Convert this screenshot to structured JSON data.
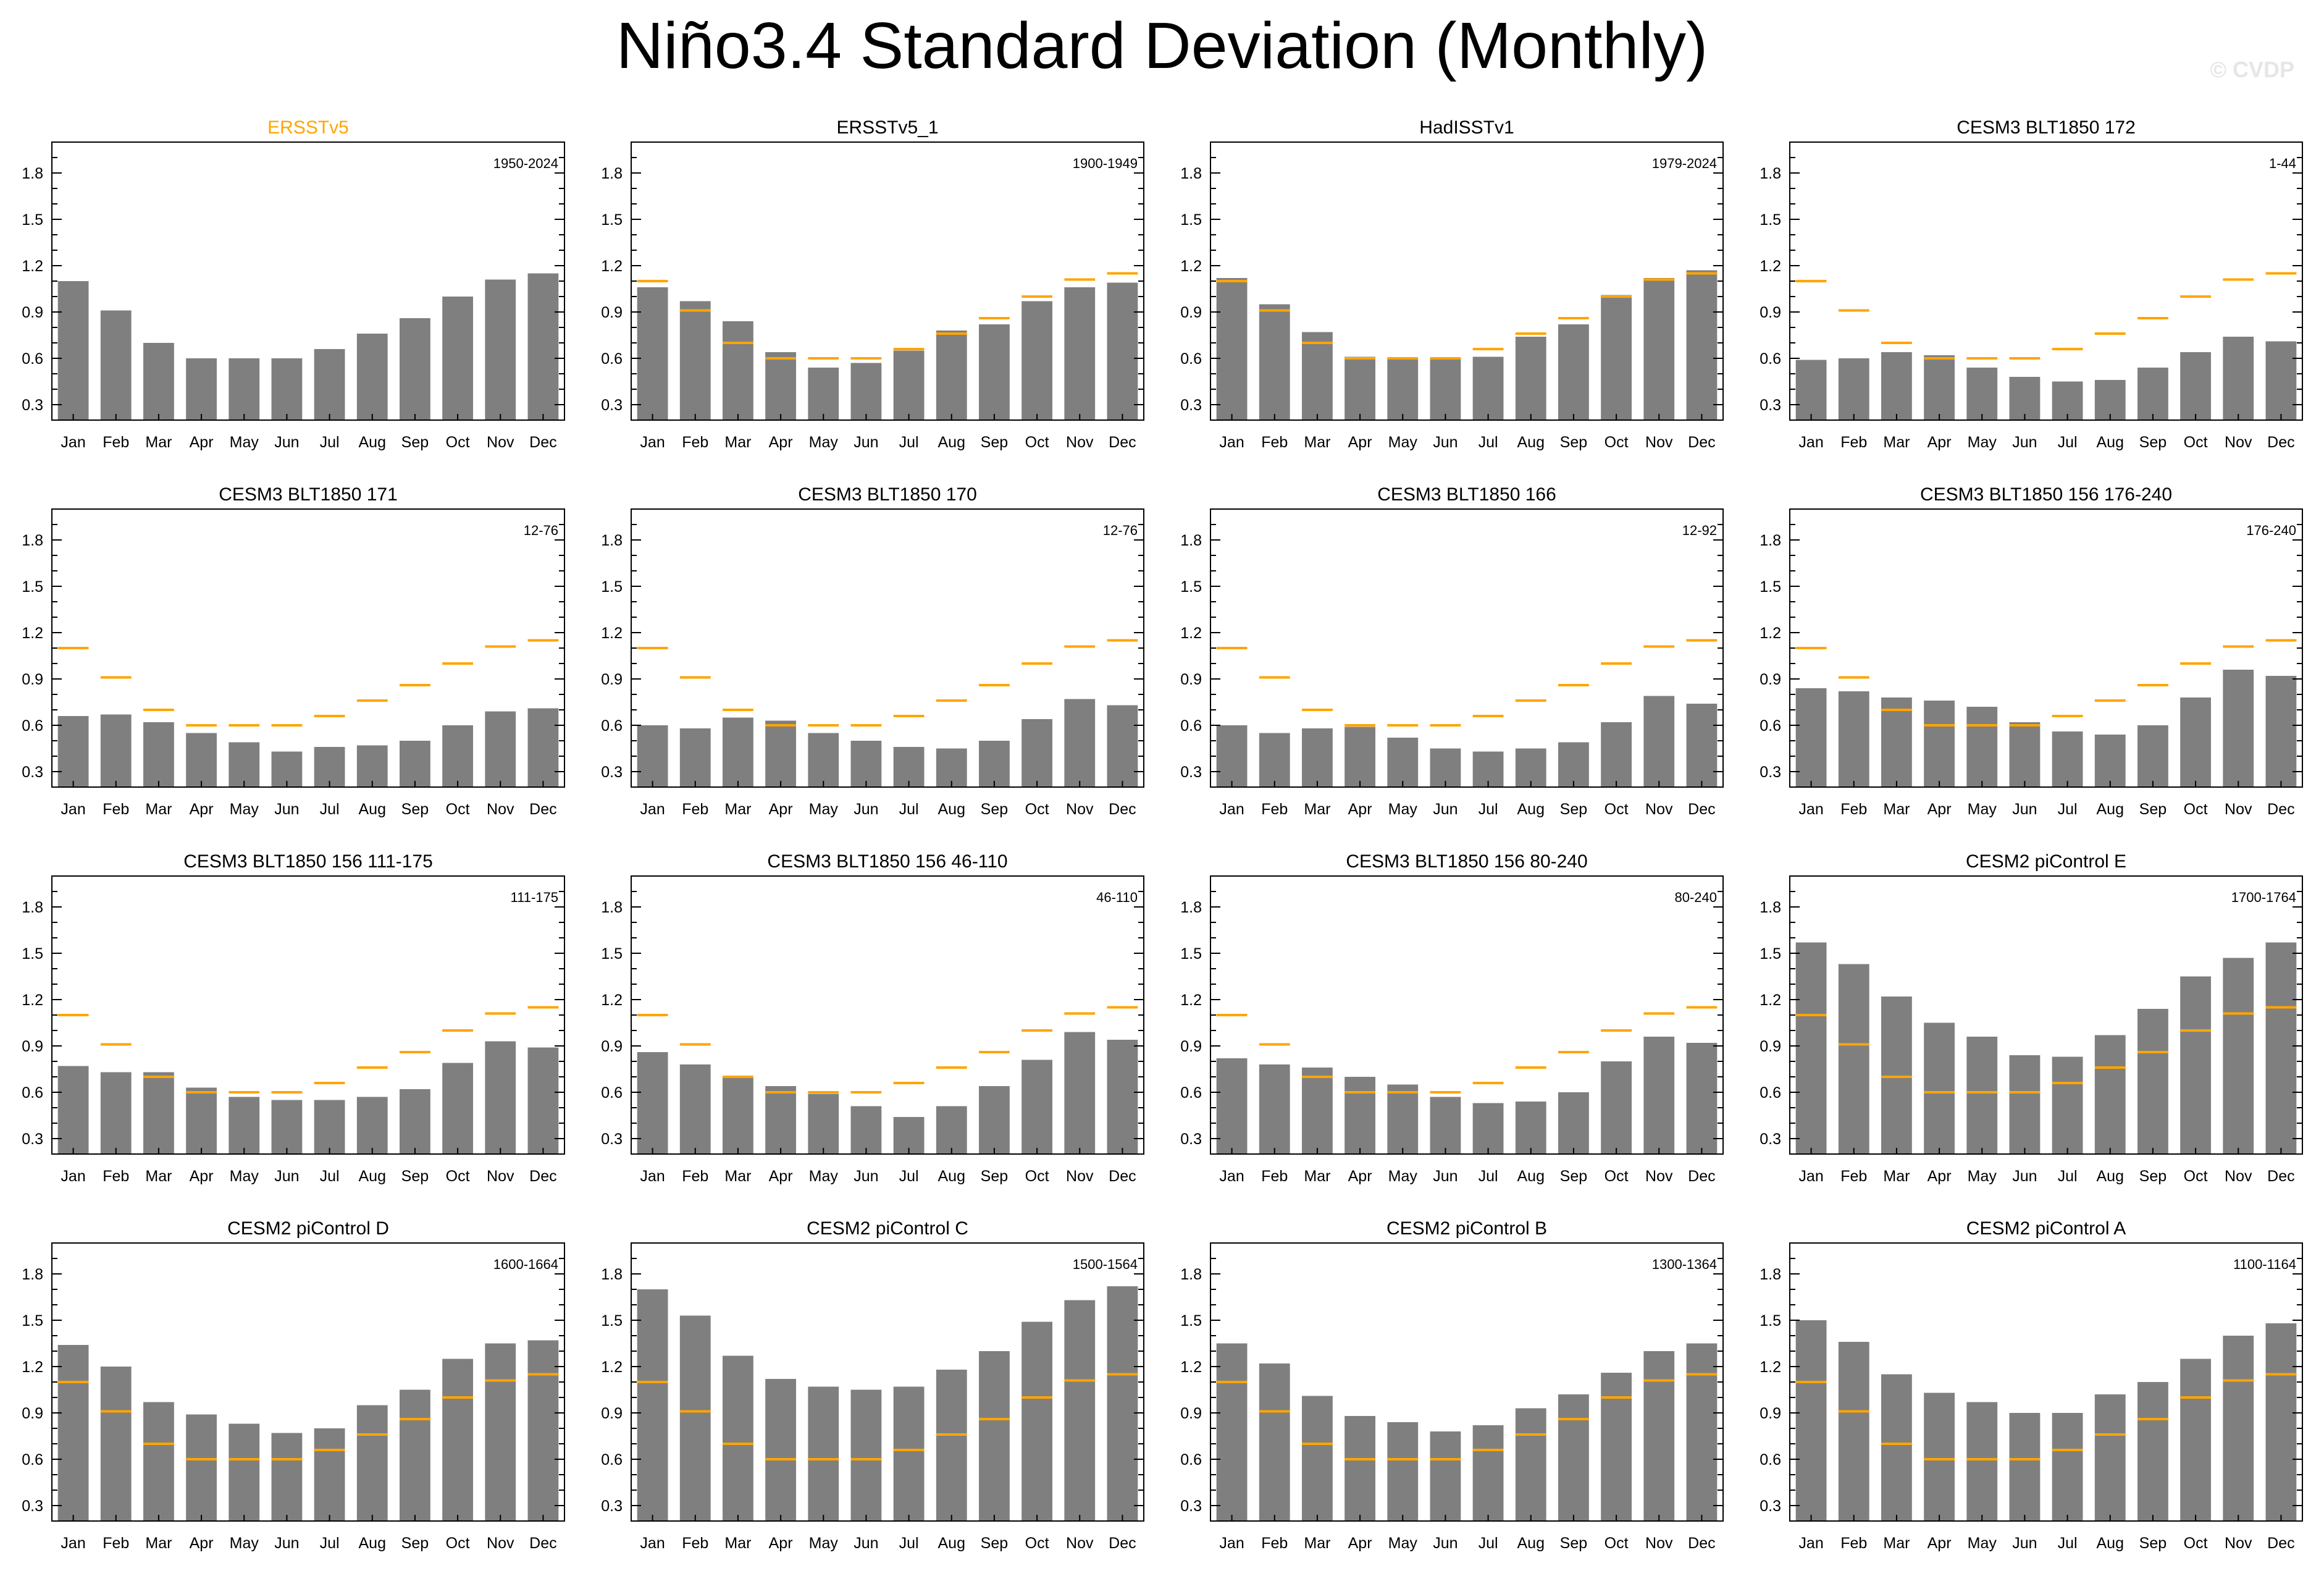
{
  "title": "Niño3.4 Standard Deviation (Monthly)",
  "watermark": "© CVDP",
  "colors": {
    "bar": "#7f7f7f",
    "obs_line": "#ffa500",
    "title_obs": "#ffa500",
    "axis": "#000000"
  },
  "chart_data": {
    "type": "bar",
    "categories": [
      "Jan",
      "Feb",
      "Mar",
      "Apr",
      "May",
      "Jun",
      "Jul",
      "Aug",
      "Sep",
      "Oct",
      "Nov",
      "Dec"
    ],
    "ylim": [
      0.2,
      2.0
    ],
    "yticks": [
      0.3,
      0.6,
      0.9,
      1.2,
      1.5,
      1.8
    ],
    "ytick_labels": [
      "0.3",
      "0.6",
      "0.9",
      "1.2",
      "1.5",
      "1.8"
    ],
    "reference_name": "ERSSTv5",
    "reference_values": [
      1.1,
      0.91,
      0.7,
      0.6,
      0.6,
      0.6,
      0.66,
      0.76,
      0.86,
      1.0,
      1.11,
      1.15
    ],
    "panels": [
      {
        "title": "ERSSTv5",
        "period": "1950-2024",
        "is_reference": true,
        "values": [
          1.1,
          0.91,
          0.7,
          0.6,
          0.6,
          0.6,
          0.66,
          0.76,
          0.86,
          1.0,
          1.11,
          1.15
        ]
      },
      {
        "title": "ERSSTv5_1",
        "period": "1900-1949",
        "is_reference": false,
        "values": [
          1.06,
          0.97,
          0.84,
          0.64,
          0.54,
          0.57,
          0.65,
          0.78,
          0.82,
          0.97,
          1.06,
          1.09
        ]
      },
      {
        "title": "HadISSTv1",
        "period": "1979-2024",
        "is_reference": false,
        "values": [
          1.12,
          0.95,
          0.77,
          0.61,
          0.6,
          0.6,
          0.61,
          0.74,
          0.82,
          1.01,
          1.12,
          1.17
        ]
      },
      {
        "title": "CESM3 BLT1850 172",
        "period": "1-44",
        "is_reference": false,
        "values": [
          0.59,
          0.6,
          0.64,
          0.62,
          0.54,
          0.48,
          0.45,
          0.46,
          0.54,
          0.64,
          0.74,
          0.71
        ]
      },
      {
        "title": "CESM3 BLT1850 171",
        "period": "12-76",
        "is_reference": false,
        "values": [
          0.66,
          0.67,
          0.62,
          0.55,
          0.49,
          0.43,
          0.46,
          0.47,
          0.5,
          0.6,
          0.69,
          0.71
        ]
      },
      {
        "title": "CESM3 BLT1850 170",
        "period": "12-76",
        "is_reference": false,
        "values": [
          0.6,
          0.58,
          0.65,
          0.63,
          0.55,
          0.5,
          0.46,
          0.45,
          0.5,
          0.64,
          0.77,
          0.73
        ]
      },
      {
        "title": "CESM3 BLT1850 166",
        "period": "12-92",
        "is_reference": false,
        "values": [
          0.6,
          0.55,
          0.58,
          0.59,
          0.52,
          0.45,
          0.43,
          0.45,
          0.49,
          0.62,
          0.79,
          0.74
        ]
      },
      {
        "title": "CESM3 BLT1850 156 176-240",
        "period": "176-240",
        "is_reference": false,
        "values": [
          0.84,
          0.82,
          0.78,
          0.76,
          0.72,
          0.62,
          0.56,
          0.54,
          0.6,
          0.78,
          0.96,
          0.92
        ]
      },
      {
        "title": "CESM3 BLT1850 156 111-175",
        "period": "111-175",
        "is_reference": false,
        "values": [
          0.77,
          0.73,
          0.73,
          0.63,
          0.57,
          0.55,
          0.55,
          0.57,
          0.62,
          0.79,
          0.93,
          0.89
        ]
      },
      {
        "title": "CESM3 BLT1850 156 46-110",
        "period": "46-110",
        "is_reference": false,
        "values": [
          0.86,
          0.78,
          0.7,
          0.64,
          0.59,
          0.51,
          0.44,
          0.51,
          0.64,
          0.81,
          0.99,
          0.94
        ]
      },
      {
        "title": "CESM3 BLT1850 156 80-240",
        "period": "80-240",
        "is_reference": false,
        "values": [
          0.82,
          0.78,
          0.76,
          0.7,
          0.65,
          0.57,
          0.53,
          0.54,
          0.6,
          0.8,
          0.96,
          0.92
        ]
      },
      {
        "title": "CESM2 piControl E",
        "period": "1700-1764",
        "is_reference": false,
        "values": [
          1.57,
          1.43,
          1.22,
          1.05,
          0.96,
          0.84,
          0.83,
          0.97,
          1.14,
          1.35,
          1.47,
          1.57
        ]
      },
      {
        "title": "CESM2 piControl D",
        "period": "1600-1664",
        "is_reference": false,
        "values": [
          1.34,
          1.2,
          0.97,
          0.89,
          0.83,
          0.77,
          0.8,
          0.95,
          1.05,
          1.25,
          1.35,
          1.37
        ]
      },
      {
        "title": "CESM2 piControl C",
        "period": "1500-1564",
        "is_reference": false,
        "values": [
          1.7,
          1.53,
          1.27,
          1.12,
          1.07,
          1.05,
          1.07,
          1.18,
          1.3,
          1.49,
          1.63,
          1.72
        ]
      },
      {
        "title": "CESM2 piControl B",
        "period": "1300-1364",
        "is_reference": false,
        "values": [
          1.35,
          1.22,
          1.01,
          0.88,
          0.84,
          0.78,
          0.82,
          0.93,
          1.02,
          1.16,
          1.3,
          1.35
        ]
      },
      {
        "title": "CESM2 piControl A",
        "period": "1100-1164",
        "is_reference": false,
        "values": [
          1.5,
          1.36,
          1.15,
          1.03,
          0.97,
          0.9,
          0.9,
          1.02,
          1.1,
          1.25,
          1.4,
          1.48
        ]
      }
    ]
  }
}
